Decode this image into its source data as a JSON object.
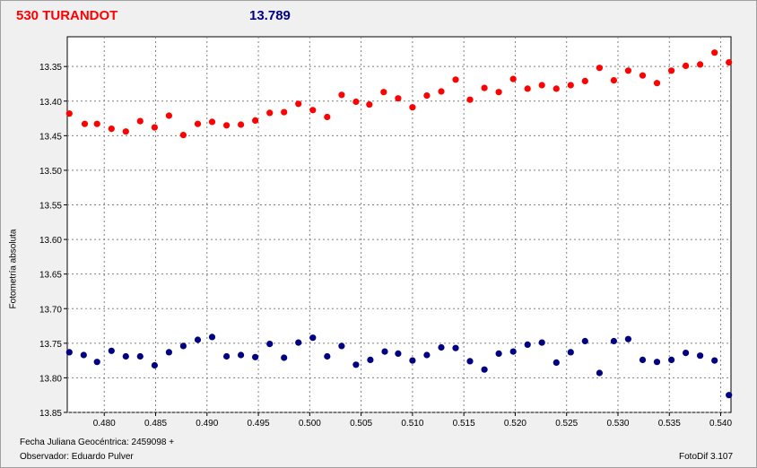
{
  "header": {
    "title": "530 TURANDOT",
    "value": "13.789"
  },
  "colors": {
    "title": "#ff0000",
    "value": "#000080",
    "target": "#ff0000",
    "check": "#000080",
    "grid": "#808080"
  },
  "footer": {
    "jd": "Fecha Juliana Geocéntrica: 2459098 +",
    "observer": "Observador: Eduardo Pulver",
    "software": "FotoDif 3.107"
  },
  "chart_data": {
    "type": "scatter",
    "xlabel": "",
    "ylabel": "Fotometría absoluta",
    "xlim": [
      0.4764,
      0.541
    ],
    "ylim": [
      13.85,
      13.307
    ],
    "y_inverted": true,
    "grid": true,
    "xticks": [
      "0.480",
      "0.485",
      "0.490",
      "0.495",
      "0.500",
      "0.505",
      "0.510",
      "0.515",
      "0.520",
      "0.525",
      "0.530",
      "0.535",
      "0.540"
    ],
    "yticks": [
      "13.35",
      "13.40",
      "13.45",
      "13.50",
      "13.55",
      "13.60",
      "13.65",
      "13.70",
      "13.75",
      "13.80",
      "13.85"
    ],
    "series": [
      {
        "x": [
          0.4766,
          0.4781,
          0.4793,
          0.4807,
          0.4821,
          0.4835,
          0.4849,
          0.4863,
          0.4877,
          0.4891,
          0.4905,
          0.4919,
          0.4933,
          0.4947,
          0.4961,
          0.4975,
          0.4989,
          0.5003,
          0.5017,
          0.5031,
          0.5045,
          0.5058,
          0.5072,
          0.5086,
          0.51,
          0.5114,
          0.5128,
          0.5142,
          0.5156,
          0.517,
          0.5184,
          0.5198,
          0.5212,
          0.5226,
          0.524,
          0.5254,
          0.5268,
          0.5282,
          0.5296,
          0.531,
          0.5324,
          0.5338,
          0.5352,
          0.5366,
          0.538,
          0.5394,
          0.5408
        ],
        "values": [
          13.418,
          13.433,
          13.433,
          13.44,
          13.444,
          13.429,
          13.438,
          13.421,
          13.449,
          13.433,
          13.43,
          13.435,
          13.434,
          13.428,
          13.417,
          13.416,
          13.404,
          13.413,
          13.423,
          13.391,
          13.401,
          13.405,
          13.387,
          13.396,
          13.409,
          13.392,
          13.386,
          13.369,
          13.398,
          13.381,
          13.387,
          13.368,
          13.382,
          13.377,
          13.382,
          13.377,
          13.371,
          13.352,
          13.37,
          13.356,
          13.363,
          13.374,
          13.356,
          13.349,
          13.347,
          13.33,
          13.344
        ]
      },
      {
        "x": [
          0.4766,
          0.478,
          0.4793,
          0.4807,
          0.4821,
          0.4835,
          0.4849,
          0.4863,
          0.4877,
          0.4891,
          0.4905,
          0.4919,
          0.4933,
          0.4947,
          0.4961,
          0.4975,
          0.4989,
          0.5003,
          0.5017,
          0.5031,
          0.5045,
          0.5059,
          0.5073,
          0.5086,
          0.51,
          0.5114,
          0.5128,
          0.5142,
          0.5156,
          0.517,
          0.5184,
          0.5198,
          0.5212,
          0.5226,
          0.524,
          0.5254,
          0.5268,
          0.5282,
          0.5296,
          0.531,
          0.5324,
          0.5338,
          0.5352,
          0.5366,
          0.538,
          0.5394,
          0.5408
        ],
        "values": [
          13.763,
          13.767,
          13.777,
          13.761,
          13.769,
          13.769,
          13.782,
          13.763,
          13.754,
          13.745,
          13.741,
          13.769,
          13.767,
          13.77,
          13.751,
          13.771,
          13.749,
          13.742,
          13.769,
          13.754,
          13.781,
          13.774,
          13.762,
          13.765,
          13.775,
          13.767,
          13.756,
          13.757,
          13.776,
          13.788,
          13.765,
          13.762,
          13.752,
          13.749,
          13.778,
          13.763,
          13.747,
          13.793,
          13.747,
          13.744,
          13.774,
          13.777,
          13.774,
          13.764,
          13.768,
          13.775,
          13.825
        ]
      }
    ]
  }
}
